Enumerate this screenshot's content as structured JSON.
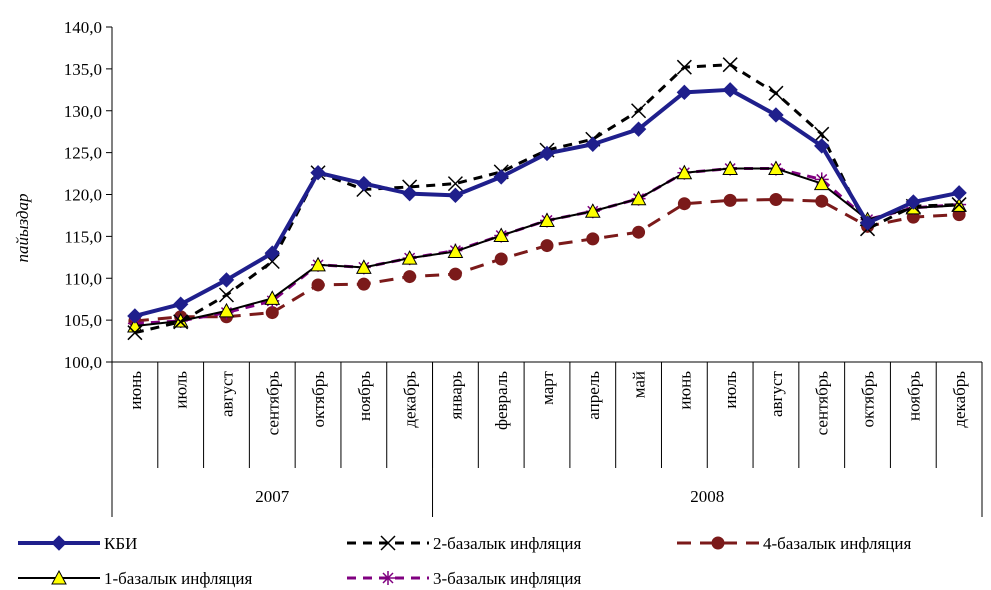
{
  "chart_data": {
    "type": "line",
    "title": "",
    "xlabel": "",
    "ylabel": "пайыздар",
    "ylim": [
      100,
      140
    ],
    "yticks": [
      "100,0",
      "105,0",
      "110,0",
      "115,0",
      "120,0",
      "125,0",
      "130,0",
      "135,0",
      "140,0"
    ],
    "ytick_values": [
      100,
      105,
      110,
      115,
      120,
      125,
      130,
      135,
      140
    ],
    "grid": false,
    "legend_position": "bottom",
    "categories": [
      "июнь",
      "июль",
      "август",
      "сентябрь",
      "октябрь",
      "ноябрь",
      "декабрь",
      "январь",
      "февраль",
      "март",
      "апрель",
      "май",
      "июнь",
      "июль",
      "август",
      "сентябрь",
      "октябрь",
      "ноябрь",
      "декабрь"
    ],
    "year_groups": [
      {
        "label": "2007",
        "count": 7
      },
      {
        "label": "2008",
        "count": 12
      }
    ],
    "series": [
      {
        "name": "КБИ",
        "color": "#1f1f8c",
        "dash": "solid",
        "marker": "diamond",
        "values": [
          105.5,
          106.9,
          109.8,
          113.0,
          122.6,
          121.3,
          120.1,
          119.9,
          122.1,
          124.9,
          126.0,
          127.8,
          132.2,
          132.5,
          129.5,
          125.8,
          116.6,
          119.1,
          120.2
        ]
      },
      {
        "name": "2-базалык инфляция",
        "color": "#000000",
        "dash": "dash",
        "marker": "x",
        "values": [
          103.5,
          104.8,
          108.0,
          112.0,
          122.6,
          120.6,
          120.9,
          121.3,
          122.7,
          125.3,
          126.6,
          130.0,
          135.2,
          135.5,
          132.1,
          127.2,
          115.9,
          118.6,
          118.8
        ]
      },
      {
        "name": "4-базалык инфляция",
        "color": "#7b1a1a",
        "dash": "dash",
        "marker": "circle",
        "values": [
          104.9,
          105.4,
          105.4,
          105.9,
          109.2,
          109.3,
          110.2,
          110.5,
          112.3,
          113.9,
          114.7,
          115.5,
          118.9,
          119.3,
          119.4,
          119.2,
          116.2,
          117.3,
          117.6
        ]
      },
      {
        "name": "1-базалык инфляция",
        "color": "#000000",
        "dash": "solid",
        "marker": "triangle",
        "values": [
          104.3,
          104.9,
          106.1,
          107.6,
          111.6,
          111.3,
          112.4,
          113.2,
          115.1,
          116.9,
          118.0,
          119.5,
          122.6,
          123.1,
          123.1,
          121.3,
          117.0,
          118.4,
          118.7
        ]
      },
      {
        "name": "3-базалык инфляция",
        "color": "#800080",
        "dash": "dash",
        "marker": "star",
        "values": [
          104.6,
          104.9,
          105.9,
          107.3,
          111.6,
          111.3,
          112.4,
          113.3,
          115.1,
          116.9,
          118.0,
          119.5,
          122.6,
          123.1,
          123.1,
          121.8,
          117.0,
          118.4,
          118.8
        ]
      }
    ]
  }
}
